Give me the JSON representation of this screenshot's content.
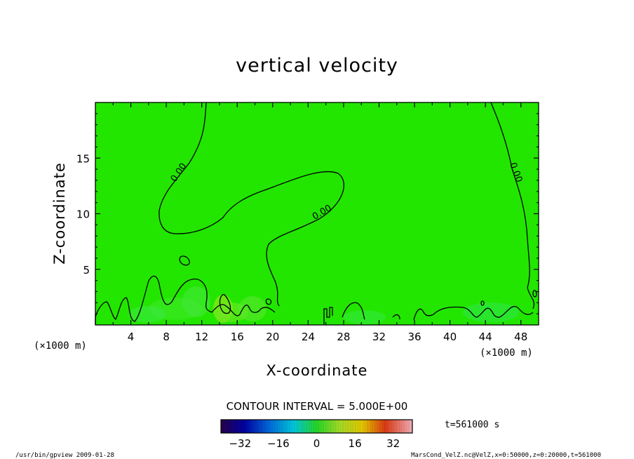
{
  "chart_data": {
    "type": "contour",
    "title": "vertical velocity",
    "xlabel": "X-coordinate",
    "ylabel": "Z-coordinate",
    "x_unit_left": "(×1000 m)",
    "x_unit_right": "(×1000 m)",
    "xlim": [
      0,
      50
    ],
    "ylim": [
      0,
      20
    ],
    "x_ticks": [
      4,
      8,
      12,
      16,
      20,
      24,
      28,
      32,
      36,
      40,
      44,
      48
    ],
    "y_ticks": [
      5,
      10,
      15
    ],
    "x_tick_labels": [
      "4",
      "8",
      "12",
      "16",
      "20",
      "24",
      "28",
      "32",
      "36",
      "40",
      "44",
      "48"
    ],
    "y_tick_labels": [
      "5",
      "10",
      "15"
    ],
    "contour_label": "0.00",
    "contour_interval_text": "CONTOUR INTERVAL = 5.000E+00",
    "time_text": "t=561000 s",
    "colorbar": {
      "range": [
        -40,
        40
      ],
      "ticks": [
        -32,
        -16,
        0,
        16,
        32
      ],
      "tick_labels": [
        "−32",
        "−16",
        "0",
        "16",
        "32"
      ]
    },
    "background_color": "#22e600",
    "footer_left": "/usr/bin/gpview   2009-01-28",
    "footer_right": "MarsCond_VelZ.nc@VelZ,x=0:50000,z=0:20000,t=561000"
  }
}
